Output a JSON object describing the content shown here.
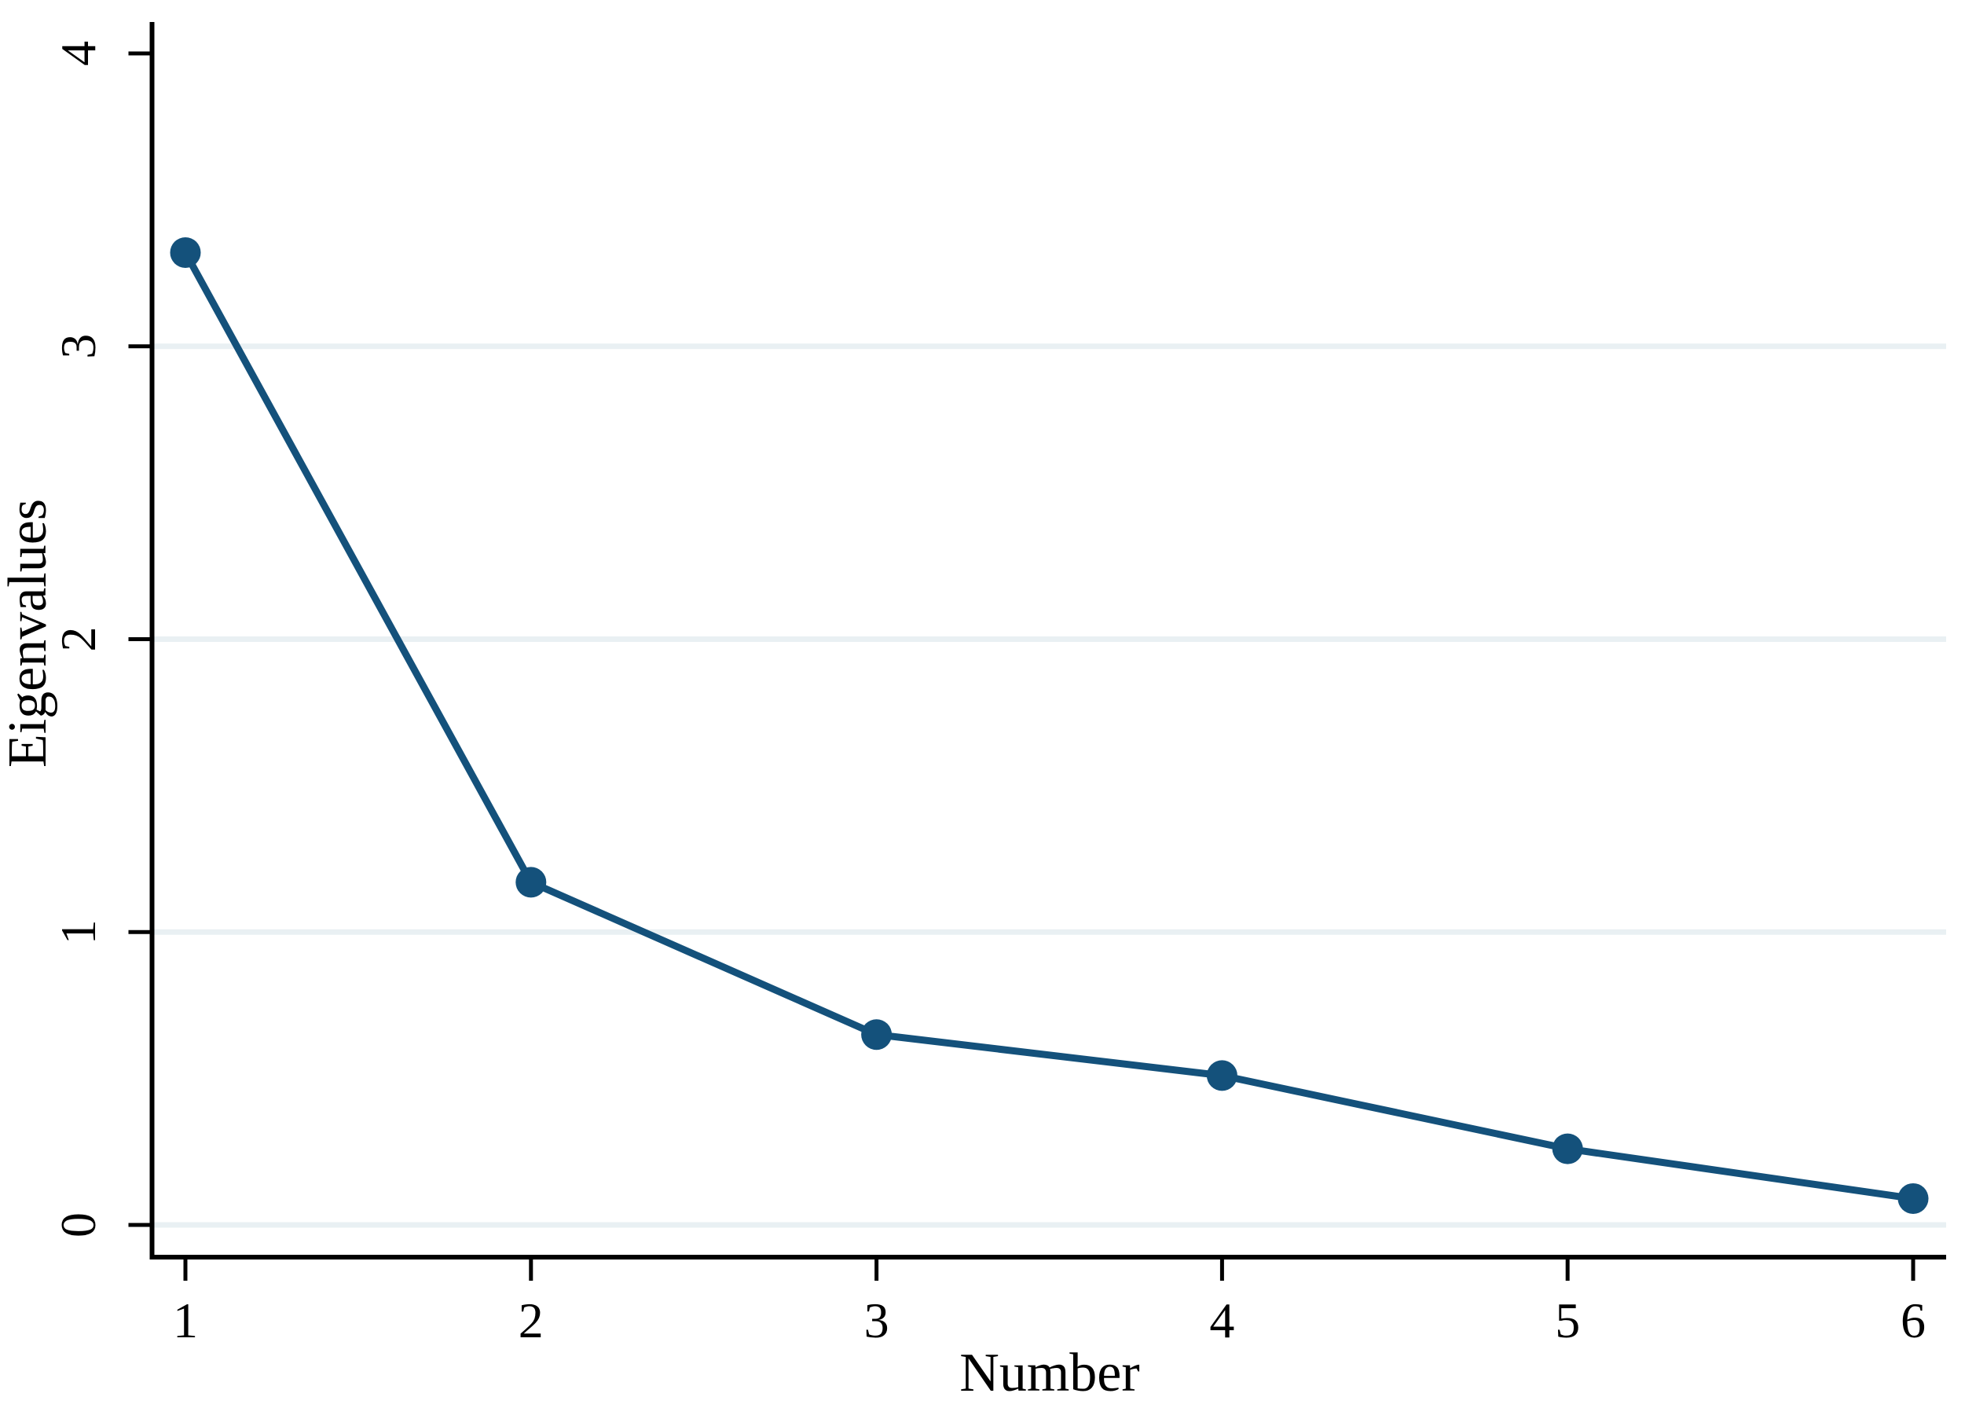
{
  "figure": {
    "background": "#ffffff",
    "kind": "stata-style scree plot"
  },
  "chart_data": {
    "type": "line",
    "title": "",
    "xlabel": "Number",
    "ylabel": "Eigenvalues",
    "x": [
      1,
      2,
      3,
      4,
      5,
      6
    ],
    "series": [
      {
        "name": "Eigenvalues",
        "values": [
          3.32,
          1.17,
          0.65,
          0.51,
          0.26,
          0.09
        ]
      }
    ],
    "x_ticks": [
      1,
      2,
      3,
      4,
      5,
      6
    ],
    "y_ticks": [
      0,
      1,
      2,
      3,
      4
    ],
    "y_gridline_values": [
      0,
      1,
      2,
      3
    ],
    "xlim": [
      1,
      6
    ],
    "ylim": [
      0,
      4
    ],
    "legend": "none",
    "grid": "horizontal-only",
    "marker": "filled-circle",
    "colors": {
      "series": "#14517b",
      "grid": "#e9f0f3",
      "axis": "#000000",
      "text": "#000000"
    }
  }
}
